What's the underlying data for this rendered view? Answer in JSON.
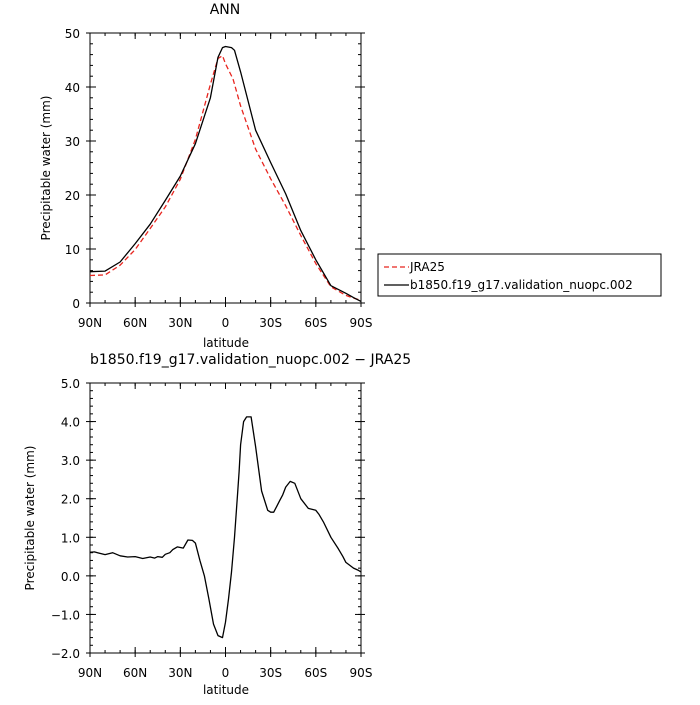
{
  "chart_data": [
    {
      "type": "line",
      "title": "ANN",
      "xlabel": "latitude",
      "ylabel": "Precipitable water (mm)",
      "xlim": [
        90,
        -90
      ],
      "ylim": [
        0,
        50
      ],
      "xticks": [
        {
          "value": 90,
          "label": "90N"
        },
        {
          "value": 60,
          "label": "60N"
        },
        {
          "value": 30,
          "label": "30N"
        },
        {
          "value": 0,
          "label": "0"
        },
        {
          "value": -30,
          "label": "30S"
        },
        {
          "value": -60,
          "label": "60S"
        },
        {
          "value": -90,
          "label": "90S"
        }
      ],
      "yticks": [
        {
          "value": 0,
          "label": "0"
        },
        {
          "value": 10,
          "label": "10"
        },
        {
          "value": 20,
          "label": "20"
        },
        {
          "value": 30,
          "label": "30"
        },
        {
          "value": 40,
          "label": "40"
        },
        {
          "value": 50,
          "label": "50"
        }
      ],
      "legend_placement": "right",
      "series": [
        {
          "name": "JRA25",
          "color": "#e8251f",
          "dash": "dashed",
          "x": [
            90,
            80,
            70,
            60,
            50,
            40,
            30,
            20,
            10,
            5,
            2,
            0,
            -5,
            -10,
            -20,
            -30,
            -40,
            -50,
            -60,
            -70,
            -80,
            -85,
            -90
          ],
          "y": [
            5.1,
            5.2,
            7.0,
            9.9,
            13.8,
            17.8,
            22.9,
            30.3,
            40.5,
            45.3,
            45.8,
            44.3,
            41.5,
            36.5,
            28.5,
            23.0,
            18.0,
            12.5,
            7.3,
            3.0,
            1.4,
            0.9,
            0.5
          ]
        },
        {
          "name": "b1850.f19_g17.validation_nuopc.002",
          "color": "#000000",
          "dash": "solid",
          "x": [
            90,
            80,
            70,
            60,
            50,
            40,
            30,
            20,
            10,
            5,
            2,
            0,
            -4,
            -6,
            -10,
            -20,
            -30,
            -40,
            -50,
            -60,
            -70,
            -80,
            -85,
            -90
          ],
          "y": [
            5.8,
            5.9,
            7.6,
            11.0,
            14.6,
            19.0,
            23.5,
            29.5,
            38.0,
            45.5,
            47.3,
            47.5,
            47.3,
            46.8,
            42.8,
            32.0,
            26.0,
            20.2,
            13.4,
            8.0,
            3.2,
            1.8,
            1.0,
            0.3
          ]
        }
      ]
    },
    {
      "type": "line",
      "title": "b1850.f19_g17.validation_nuopc.002 − JRA25",
      "xlabel": "latitude",
      "ylabel": "Precipitable water (mm)",
      "xlim": [
        90,
        -90
      ],
      "ylim": [
        -2,
        5
      ],
      "xticks": [
        {
          "value": 90,
          "label": "90N"
        },
        {
          "value": 60,
          "label": "60N"
        },
        {
          "value": 30,
          "label": "30N"
        },
        {
          "value": 0,
          "label": "0"
        },
        {
          "value": -30,
          "label": "30S"
        },
        {
          "value": -60,
          "label": "60S"
        },
        {
          "value": -90,
          "label": "90S"
        }
      ],
      "yticks": [
        {
          "value": -2,
          "label": "−2.0"
        },
        {
          "value": -1,
          "label": "−1.0"
        },
        {
          "value": 0,
          "label": "0.0"
        },
        {
          "value": 1,
          "label": "1.0"
        },
        {
          "value": 2,
          "label": "2.0"
        },
        {
          "value": 3,
          "label": "3.0"
        },
        {
          "value": 4,
          "label": "4.0"
        },
        {
          "value": 5,
          "label": "5.0"
        }
      ],
      "series": [
        {
          "color": "#000000",
          "dash": "solid",
          "x": [
            90,
            87,
            85,
            80,
            75,
            70,
            65,
            60,
            55,
            50,
            47,
            45,
            42,
            40,
            37,
            35,
            32,
            28,
            25,
            22,
            20,
            17,
            14,
            11,
            8,
            5,
            2,
            0,
            -2,
            -4,
            -6,
            -8,
            -9,
            -10,
            -12,
            -14,
            -17,
            -20,
            -24,
            -28,
            -30,
            -32,
            -34,
            -36,
            -38,
            -40,
            -43,
            -46,
            -50,
            -55,
            -60,
            -62,
            -65,
            -70,
            -75,
            -78,
            -80,
            -85,
            -88,
            -90
          ],
          "y": [
            0.61,
            0.62,
            0.6,
            0.55,
            0.6,
            0.52,
            0.49,
            0.5,
            0.45,
            0.49,
            0.46,
            0.5,
            0.48,
            0.56,
            0.6,
            0.68,
            0.75,
            0.72,
            0.93,
            0.92,
            0.85,
            0.4,
            0.0,
            -0.6,
            -1.25,
            -1.55,
            -1.6,
            -1.2,
            -0.6,
            0.1,
            1.0,
            2.1,
            2.7,
            3.4,
            4.0,
            4.12,
            4.12,
            3.35,
            2.2,
            1.7,
            1.65,
            1.65,
            1.8,
            1.95,
            2.1,
            2.3,
            2.45,
            2.4,
            2.0,
            1.75,
            1.7,
            1.6,
            1.4,
            1.0,
            0.7,
            0.5,
            0.35,
            0.2,
            0.15,
            0.1
          ]
        }
      ]
    }
  ]
}
